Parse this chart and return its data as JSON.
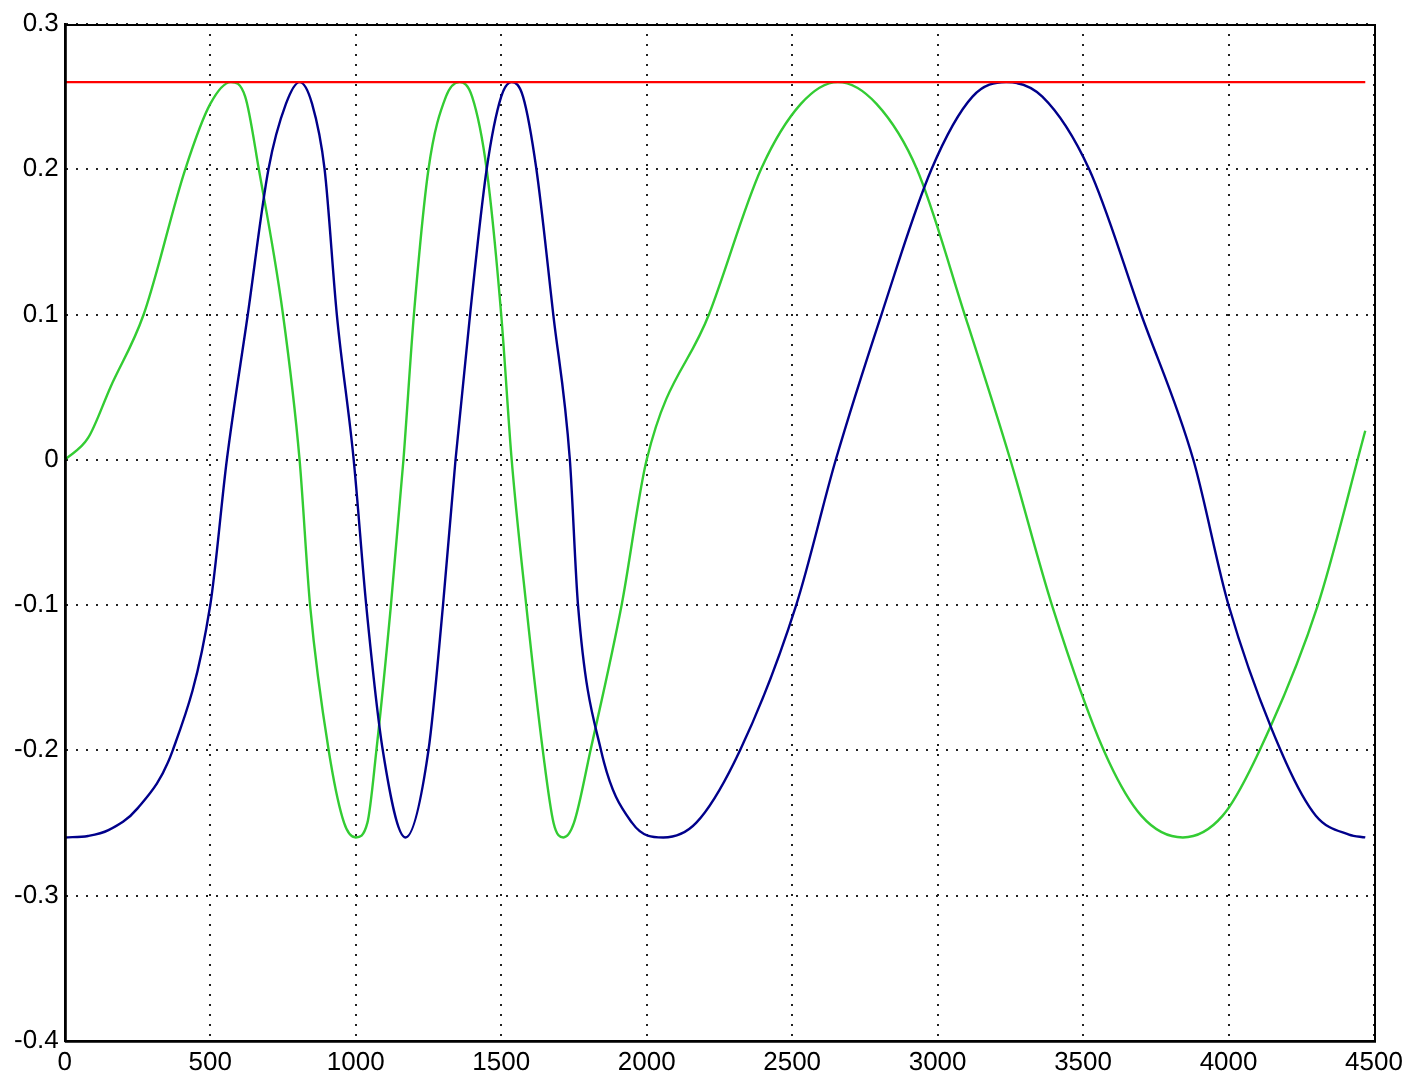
{
  "chart_data": {
    "type": "line",
    "xlim": [
      0,
      4500
    ],
    "ylim": [
      -0.4,
      0.3
    ],
    "xticks": [
      0,
      500,
      1000,
      1500,
      2000,
      2500,
      3000,
      3500,
      4000,
      4500
    ],
    "yticks": [
      -0.4,
      -0.3,
      -0.2,
      -0.1,
      0,
      0.1,
      0.2,
      0.3
    ],
    "grid": true,
    "marker": "none",
    "line_style": "solid",
    "series": [
      {
        "color": "#ff0000",
        "x": [
          0,
          4470
        ],
        "values": [
          0.26,
          0.26
        ]
      },
      {
        "color": "#00008b",
        "x": [
          0,
          80,
          150,
          250,
          371,
          500,
          557,
          629,
          700,
          760,
          807,
          850,
          893,
          935,
          993,
          1036,
          1093,
          1171,
          1250,
          1300,
          1343,
          1393,
          1450,
          1500,
          1536,
          1575,
          1621,
          1679,
          1736,
          1764,
          1843,
          1950,
          2057,
          2170,
          2321,
          2514,
          2650,
          2807,
          2979,
          3120,
          3236,
          3360,
          3521,
          3700,
          3879,
          4000,
          4179,
          4300,
          4414,
          4470
        ],
        "values": [
          -0.26,
          -0.259,
          -0.255,
          -0.24,
          -0.2,
          -0.1,
          0,
          0.1,
          0.2,
          0.245,
          0.26,
          0.245,
          0.2,
          0.1,
          0,
          -0.1,
          -0.2,
          -0.26,
          -0.2,
          -0.1,
          0,
          0.1,
          0.2,
          0.25,
          0.26,
          0.25,
          0.2,
          0.1,
          0,
          -0.1,
          -0.2,
          -0.25,
          -0.26,
          -0.25,
          -0.2,
          -0.1,
          0,
          0.1,
          0.2,
          0.25,
          0.26,
          0.25,
          0.2,
          0.1,
          0,
          -0.1,
          -0.2,
          -0.245,
          -0.258,
          -0.26
        ]
      },
      {
        "color": "#33cc33",
        "x": [
          0,
          80,
          157,
          271,
          414,
          500,
          571,
          620,
          667,
          750,
          807,
          843,
          907,
          960,
          1000,
          1040,
          1071,
          1121,
          1164,
          1200,
          1250,
          1310,
          1357,
          1400,
          1450,
          1500,
          1536,
          1586,
          1643,
          1680,
          1714,
          1750,
          1807,
          1914,
          2000,
          2214,
          2393,
          2530,
          2657,
          2790,
          2929,
          3093,
          3250,
          3393,
          3571,
          3700,
          3843,
          3980,
          4107,
          4307,
          4470
        ],
        "values": [
          0,
          0.015,
          0.05,
          0.1,
          0.2,
          0.245,
          0.26,
          0.25,
          0.2,
          0.1,
          0,
          -0.1,
          -0.2,
          -0.25,
          -0.26,
          -0.25,
          -0.2,
          -0.1,
          0,
          0.1,
          0.2,
          0.25,
          0.26,
          0.25,
          0.2,
          0.1,
          0,
          -0.1,
          -0.2,
          -0.25,
          -0.26,
          -0.25,
          -0.2,
          -0.1,
          0,
          0.1,
          0.2,
          0.245,
          0.26,
          0.245,
          0.2,
          0.1,
          0,
          -0.1,
          -0.2,
          -0.245,
          -0.26,
          -0.245,
          -0.2,
          -0.1,
          0.02
        ]
      }
    ]
  }
}
